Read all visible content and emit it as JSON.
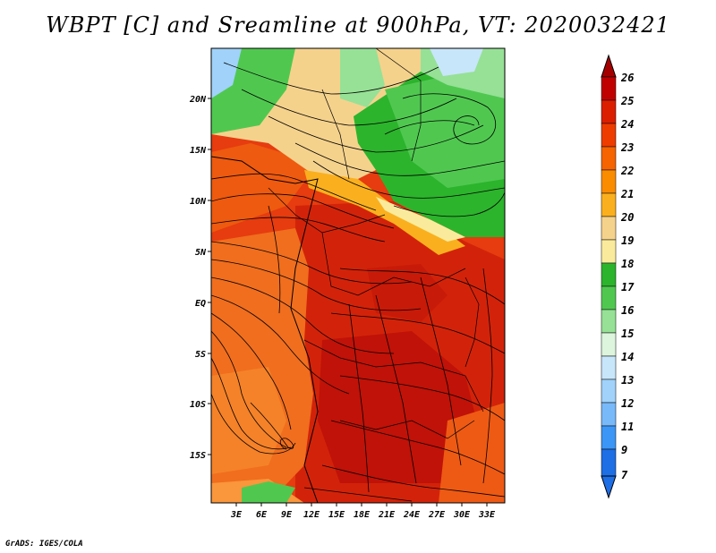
{
  "title": "WBPT [C] and Sreamline at 900hPa, VT: 2020032421",
  "credit": "GrADS: IGES/COLA",
  "map": {
    "lat_labels": [
      "20N",
      "15N",
      "10N",
      "5N",
      "EQ",
      "5S",
      "10S",
      "15S"
    ],
    "lon_labels": [
      "3E",
      "6E",
      "9E",
      "12E",
      "15E",
      "18E",
      "21E",
      "24E",
      "27E",
      "30E",
      "33E"
    ]
  },
  "colorbar": {
    "labels": [
      "26",
      "25",
      "24",
      "23",
      "22",
      "21",
      "20",
      "19",
      "18",
      "17",
      "16",
      "15",
      "14",
      "13",
      "12",
      "11",
      "9",
      "7"
    ],
    "colors": [
      "#a50000",
      "#c00000",
      "#dc1e00",
      "#ee3c00",
      "#f56400",
      "#fa8c00",
      "#fab01e",
      "#f5d28c",
      "#faeb9c",
      "#2cb42c",
      "#50c850",
      "#96e196",
      "#dcf5dc",
      "#c8e6fa",
      "#a0d2fa",
      "#78b9fa",
      "#3c96f5",
      "#1e6ee6"
    ]
  }
}
